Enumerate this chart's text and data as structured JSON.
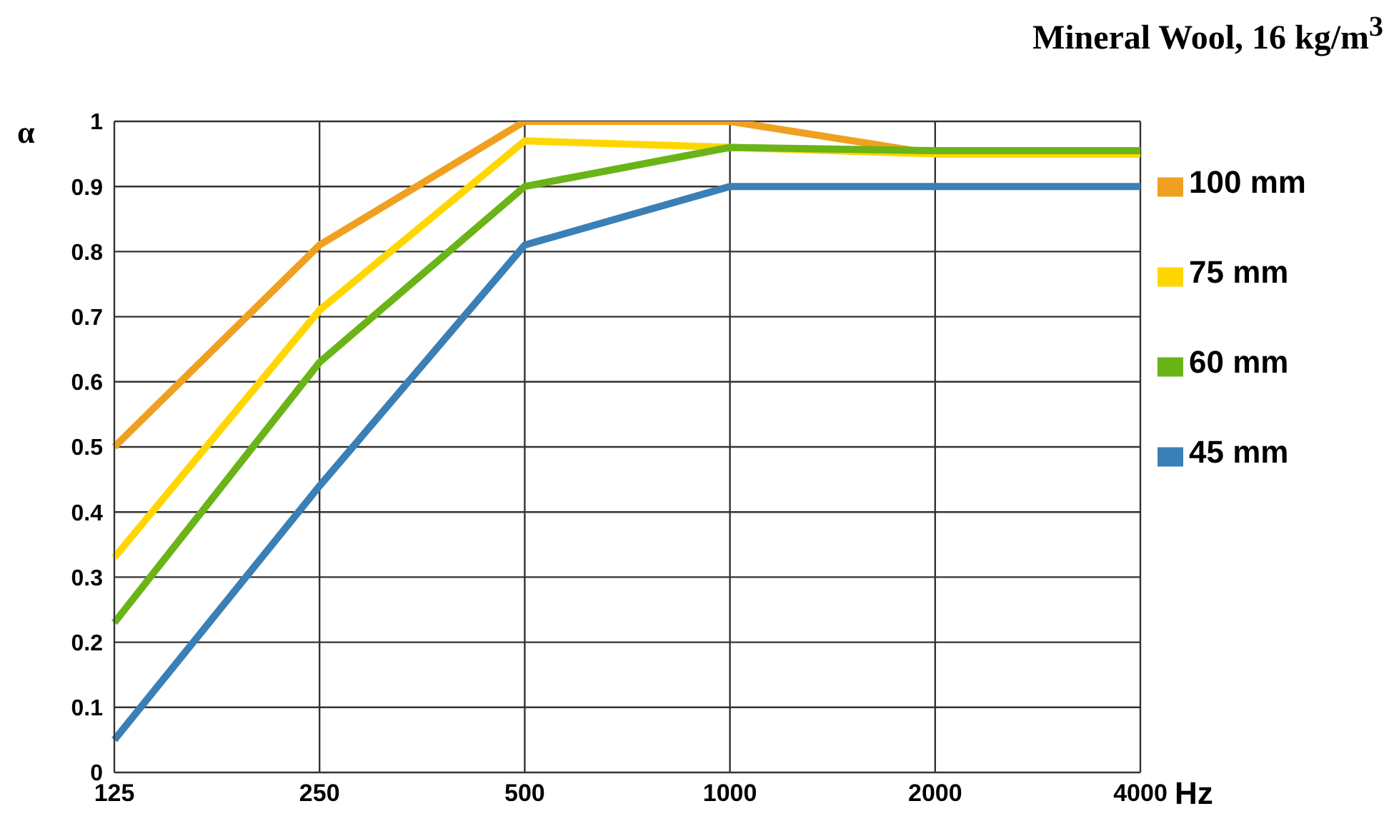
{
  "chart_data": {
    "type": "line",
    "title": "Mineral Wool, 16 kg/m$^{3}$",
    "xlabel": "Hz",
    "ylabel": "α",
    "categories": [
      "125",
      "250",
      "500",
      "1000",
      "2000",
      "4000"
    ],
    "series": [
      {
        "name": "100 mm",
        "color": "#f0a020",
        "values": [
          0.5,
          0.81,
          1.0,
          1.0,
          0.95,
          0.95
        ]
      },
      {
        "name": "75 mm",
        "color": "#ffd700",
        "values": [
          0.33,
          0.71,
          0.97,
          0.96,
          0.95,
          0.95
        ]
      },
      {
        "name": "60 mm",
        "color": "#6ab417",
        "values": [
          0.23,
          0.63,
          0.9,
          0.96,
          0.955,
          0.955
        ]
      },
      {
        "name": "45 mm",
        "color": "#3a7fb5",
        "values": [
          0.05,
          0.44,
          0.81,
          0.9,
          0.9,
          0.9
        ]
      }
    ],
    "ylim": [
      0,
      1
    ],
    "yticks": [
      0,
      0.1,
      0.2,
      0.3,
      0.4,
      0.5,
      0.6,
      0.7,
      0.8,
      0.9,
      1
    ],
    "grid": true,
    "legend": "right",
    "marker": "none",
    "line_style": "solid"
  }
}
